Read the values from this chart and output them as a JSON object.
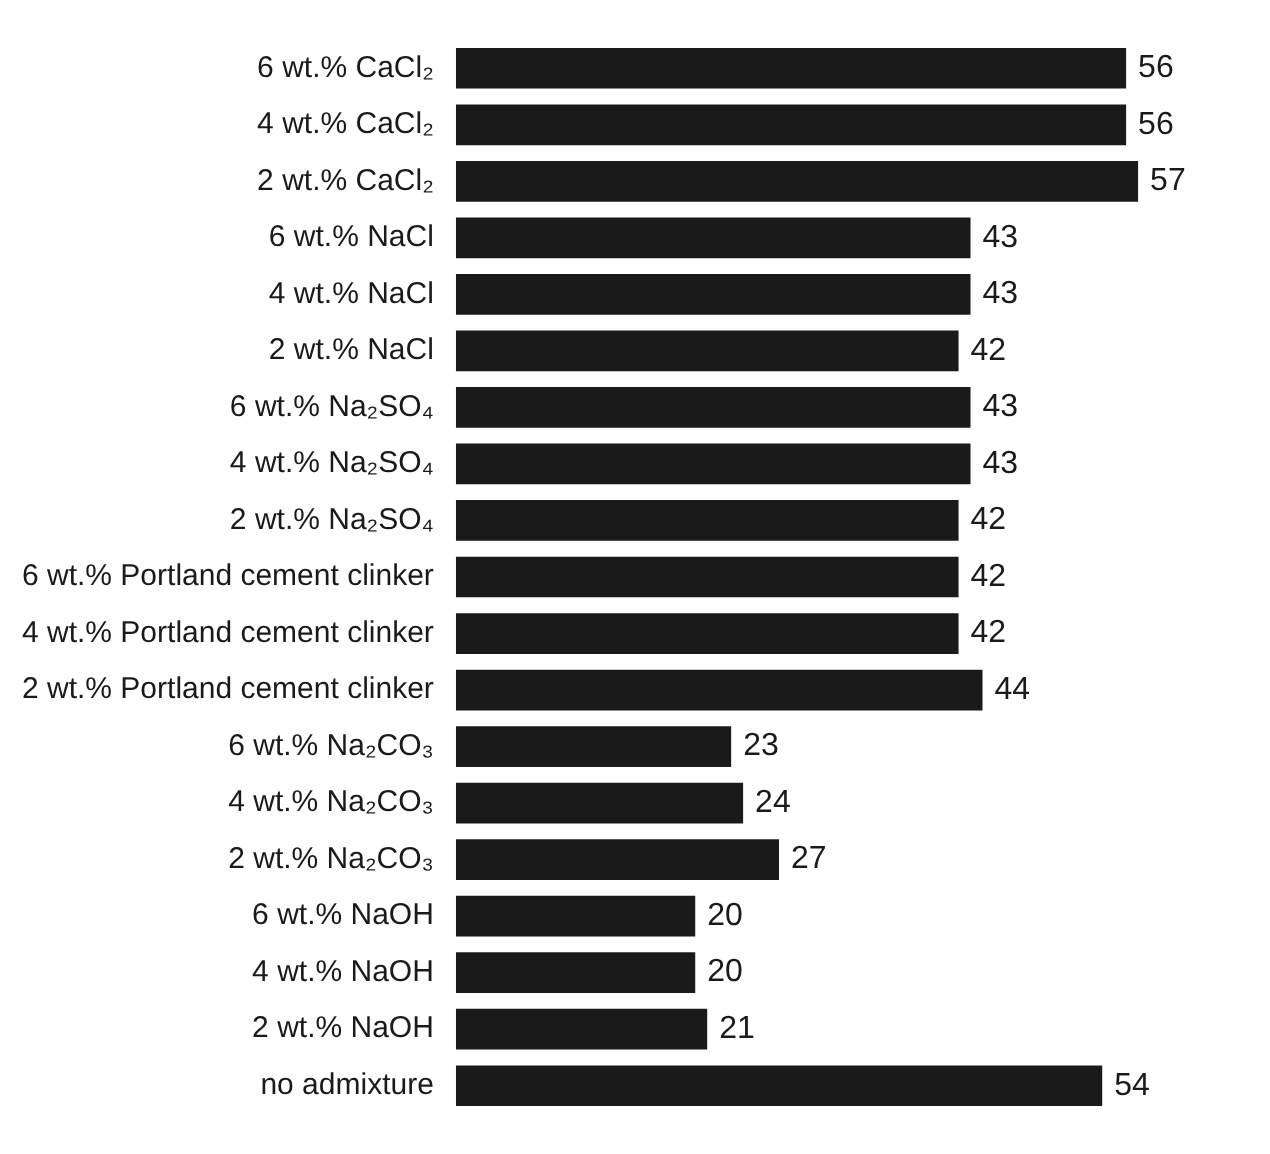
{
  "chart_data": {
    "type": "bar",
    "orientation": "horizontal",
    "categories": [
      "6 wt.% CaCl₂",
      "4 wt.% CaCl₂",
      "2 wt.% CaCl₂",
      "6 wt.% NaCl",
      "4 wt.% NaCl",
      "2 wt.% NaCl",
      "6 wt.% Na₂SO₄",
      "4 wt.% Na₂SO₄",
      "2 wt.% Na₂SO₄",
      "6 wt.% Portland cement clinker",
      "4 wt.% Portland cement clinker",
      "2 wt.% Portland cement clinker",
      "6 wt.% Na₂CO₃",
      "4 wt.% Na₂CO₃",
      "2 wt.% Na₂CO₃",
      "6 wt.% NaOH",
      "4 wt.% NaOH",
      "2 wt.% NaOH",
      "no admixture"
    ],
    "values": [
      56,
      56,
      57,
      43,
      43,
      42,
      43,
      43,
      42,
      42,
      42,
      44,
      23,
      24,
      27,
      20,
      20,
      21,
      54
    ],
    "color": "#1a1a1a",
    "data_labels": true,
    "legend": false,
    "grid": false
  }
}
